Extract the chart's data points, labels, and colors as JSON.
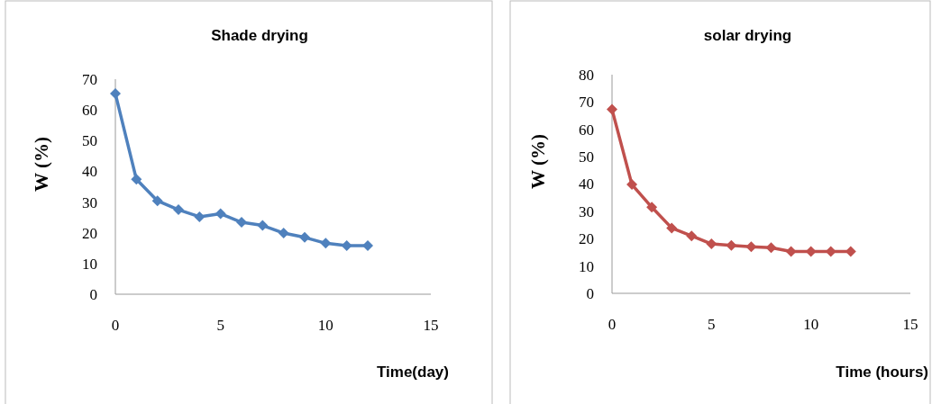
{
  "chart_data": [
    {
      "type": "line",
      "title": "Shade drying",
      "xlabel": "Time(day)",
      "ylabel": "W (%)",
      "x": [
        0,
        1,
        2,
        3,
        4,
        5,
        6,
        7,
        8,
        9,
        10,
        11,
        12
      ],
      "series": [
        {
          "color": "#4f81bd",
          "values": [
            65.3,
            37.4,
            30.4,
            27.5,
            25.2,
            26.2,
            23.4,
            22.4,
            19.9,
            18.5,
            16.6,
            15.8,
            15.8
          ]
        }
      ],
      "xlim": [
        0,
        15
      ],
      "xticks": [
        0,
        5,
        10,
        15
      ],
      "ylim": [
        0,
        70
      ],
      "yticks": [
        0,
        10,
        20,
        30,
        40,
        50,
        60,
        70
      ],
      "marker": "diamond",
      "grid": false
    },
    {
      "type": "line",
      "title": "solar drying",
      "xlabel": "Time (hours)",
      "ylabel": "W (%)",
      "x": [
        0,
        1,
        2,
        3,
        4,
        5,
        6,
        7,
        8,
        9,
        10,
        11,
        12
      ],
      "series": [
        {
          "color": "#c0504d",
          "values": [
            67.3,
            39.8,
            31.5,
            23.9,
            21,
            18.1,
            17.5,
            17,
            16.7,
            15.3,
            15.3,
            15.3,
            15.3
          ]
        }
      ],
      "xlim": [
        0,
        15
      ],
      "xticks": [
        0,
        5,
        10,
        15
      ],
      "ylim": [
        0,
        80
      ],
      "yticks": [
        0,
        10,
        20,
        30,
        40,
        50,
        60,
        70,
        80
      ],
      "marker": "diamond",
      "grid": false
    }
  ]
}
